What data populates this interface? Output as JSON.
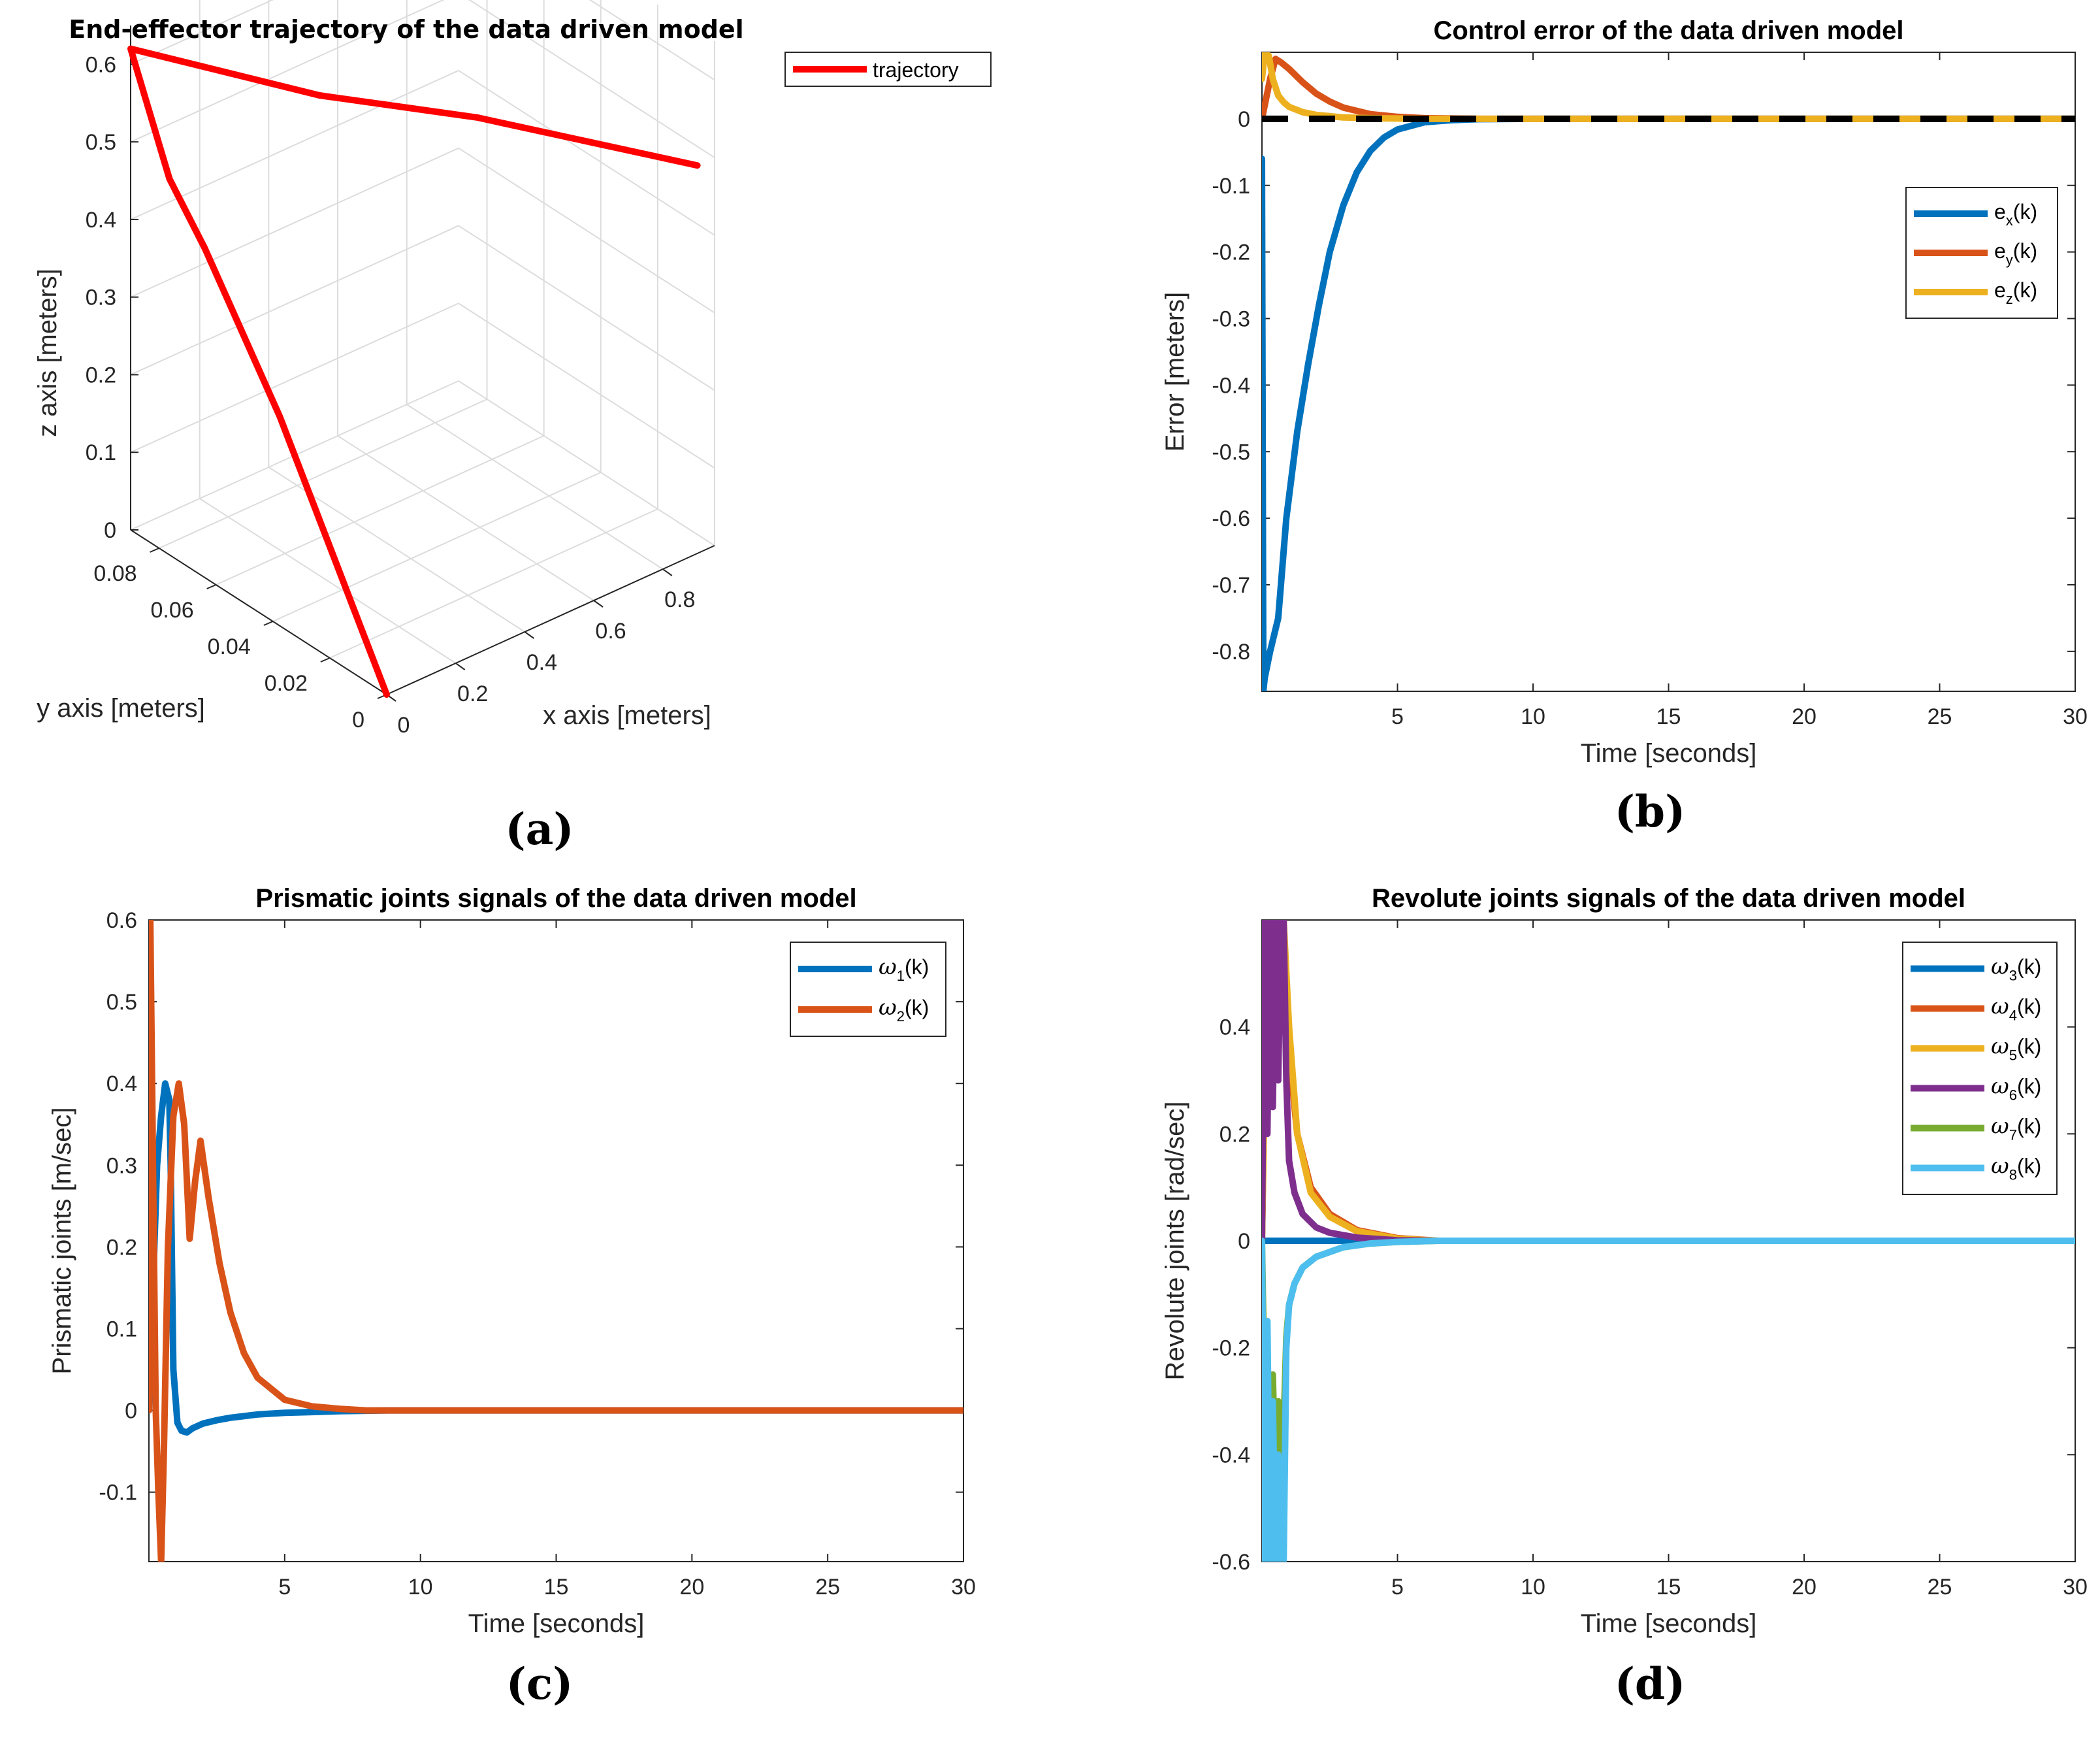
{
  "chart_data": [
    {
      "id": "a",
      "type": "line3d",
      "title": "End-effector  trajectory of the data driven model",
      "xlabel": "x axis [meters]",
      "ylabel": "y axis [meters]",
      "zlabel": "z axis [meters]",
      "xlim": [
        0,
        0.95
      ],
      "ylim": [
        0,
        0.09
      ],
      "zlim": [
        0,
        0.65
      ],
      "xticks": [
        "0",
        "0.2",
        "0.4",
        "0.6",
        "0.8"
      ],
      "yticks": [
        "0",
        "0.02",
        "0.04",
        "0.06",
        "0.08"
      ],
      "zticks": [
        "0",
        "0.1",
        "0.2",
        "0.3",
        "0.4",
        "0.5",
        "0.6"
      ],
      "legend": [
        "trajectory"
      ],
      "caption": "(a)",
      "series": [
        {
          "name": "trajectory",
          "color": "#ff0000",
          "points": [
            {
              "x": 0.0,
              "y": 0.0,
              "z": 0.0
            },
            {
              "x": 0.02,
              "y": 0.04,
              "z": 0.26
            },
            {
              "x": 0.05,
              "y": 0.07,
              "z": 0.4
            },
            {
              "x": 0.03,
              "y": 0.08,
              "z": 0.47
            },
            {
              "x": 0.0,
              "y": 0.09,
              "z": 0.62
            },
            {
              "x": 0.3,
              "y": 0.06,
              "z": 0.57
            },
            {
              "x": 0.55,
              "y": 0.035,
              "z": 0.55
            },
            {
              "x": 0.9,
              "y": 0.0,
              "z": 0.5
            }
          ]
        }
      ]
    },
    {
      "id": "b",
      "type": "line",
      "title": "Control error of the data driven model",
      "xlabel": "Time [seconds]",
      "ylabel": "Error [meters]",
      "xlim": [
        0,
        30
      ],
      "ylim": [
        -0.86,
        0.1
      ],
      "xticks": [
        5,
        10,
        15,
        20,
        25,
        30
      ],
      "yticks": [
        0,
        -0.1,
        -0.2,
        -0.3,
        -0.4,
        -0.5,
        -0.6,
        -0.7,
        -0.8
      ],
      "caption": "(b)",
      "reference_line": {
        "y": 0,
        "color": "#000000",
        "style": "dashed"
      },
      "series": [
        {
          "name": "e_x(k)",
          "label": "e",
          "sub": "x",
          "suffix": "(k)",
          "color": "#0072bd",
          "x": [
            0,
            0.05,
            0.1,
            0.3,
            0.6,
            0.9,
            1.3,
            1.7,
            2.1,
            2.5,
            3,
            3.5,
            4,
            4.5,
            5,
            6,
            7,
            8,
            10,
            30
          ],
          "y": [
            -0.06,
            -0.86,
            -0.84,
            -0.8,
            -0.75,
            -0.6,
            -0.47,
            -0.37,
            -0.28,
            -0.2,
            -0.13,
            -0.08,
            -0.048,
            -0.028,
            -0.016,
            -0.005,
            -0.002,
            -0.0005,
            0,
            0
          ]
        },
        {
          "name": "e_y(k)",
          "label": "e",
          "sub": "y",
          "suffix": "(k)",
          "color": "#d95319",
          "x": [
            0,
            0.1,
            0.3,
            0.5,
            0.7,
            1,
            1.5,
            2,
            2.5,
            3,
            4,
            5,
            6,
            8,
            30
          ],
          "y": [
            0,
            0.02,
            0.06,
            0.09,
            0.085,
            0.075,
            0.055,
            0.038,
            0.026,
            0.017,
            0.007,
            0.003,
            0.001,
            0,
            0
          ]
        },
        {
          "name": "e_z(k)",
          "label": "e",
          "sub": "z",
          "suffix": "(k)",
          "color": "#edb120",
          "x": [
            0,
            0.1,
            0.25,
            0.4,
            0.6,
            0.8,
            1,
            1.5,
            2,
            3,
            4,
            6,
            30
          ],
          "y": [
            0.06,
            0.1,
            0.095,
            0.06,
            0.035,
            0.025,
            0.018,
            0.01,
            0.006,
            0.002,
            0.001,
            0,
            0
          ]
        }
      ]
    },
    {
      "id": "c",
      "type": "line",
      "title": "Prismatic joints signals of the data driven model",
      "xlabel": "Time [seconds]",
      "ylabel": "Prismatic joints [m/sec]",
      "xlim": [
        0,
        30
      ],
      "ylim": [
        -0.185,
        0.6
      ],
      "xticks": [
        5,
        10,
        15,
        20,
        25,
        30
      ],
      "yticks": [
        0.6,
        0.5,
        0.4,
        0.3,
        0.2,
        0.1,
        0,
        -0.1
      ],
      "caption": "(c)",
      "series": [
        {
          "name": "ω_1(k)",
          "label": "ω",
          "sub": "1",
          "suffix": "(k)",
          "color": "#0072bd",
          "x": [
            0,
            0.15,
            0.3,
            0.45,
            0.6,
            0.75,
            0.8,
            0.9,
            1.05,
            1.2,
            1.4,
            1.6,
            2,
            2.5,
            3,
            4,
            5,
            6,
            7,
            8.8,
            30
          ],
          "y": [
            0,
            0.15,
            0.3,
            0.36,
            0.4,
            0.38,
            0.3,
            0.05,
            -0.015,
            -0.025,
            -0.027,
            -0.022,
            -0.016,
            -0.012,
            -0.009,
            -0.005,
            -0.003,
            -0.002,
            -0.001,
            0,
            0
          ]
        },
        {
          "name": "ω_2(k)",
          "label": "ω",
          "sub": "2",
          "suffix": "(k)",
          "color": "#d95319",
          "x": [
            0,
            0.05,
            0.15,
            0.25,
            0.35,
            0.45,
            0.55,
            0.7,
            0.9,
            1.1,
            1.3,
            1.5,
            1.7,
            1.9,
            2.2,
            2.6,
            3,
            3.5,
            4,
            5,
            6,
            7,
            8,
            30
          ],
          "y": [
            0,
            0.6,
            0.3,
            0.0,
            -0.1,
            -0.185,
            -0.05,
            0.2,
            0.36,
            0.4,
            0.35,
            0.21,
            0.28,
            0.33,
            0.26,
            0.18,
            0.12,
            0.07,
            0.04,
            0.013,
            0.005,
            0.002,
            0,
            0
          ]
        }
      ]
    },
    {
      "id": "d",
      "type": "line",
      "title": "Revolute joints signals of the data driven model",
      "xlabel": "Time [seconds]",
      "ylabel": "Revolute joints [rad/sec]",
      "xlim": [
        0,
        30
      ],
      "ylim": [
        -0.6,
        0.6
      ],
      "xticks": [
        5,
        10,
        15,
        20,
        25,
        30
      ],
      "yticks": [
        0.4,
        0.2,
        0,
        -0.2,
        -0.4,
        -0.6
      ],
      "caption": "(d)",
      "series": [
        {
          "name": "ω_3(k)",
          "label": "ω",
          "sub": "3",
          "suffix": "(k)",
          "color": "#0072bd",
          "x": [
            0,
            30
          ],
          "y": [
            0,
            0
          ]
        },
        {
          "name": "ω_4(k)",
          "label": "ω",
          "sub": "4",
          "suffix": "(k)",
          "color": "#d95319",
          "x": [
            0,
            0.2,
            0.4,
            0.6,
            0.8,
            1,
            1.3,
            1.8,
            2.5,
            3.5,
            5,
            6.5,
            30
          ],
          "y": [
            0,
            0.6,
            0.3,
            0.6,
            0.6,
            0.35,
            0.2,
            0.1,
            0.05,
            0.02,
            0.005,
            0,
            0
          ]
        },
        {
          "name": "ω_5(k)",
          "label": "ω",
          "sub": "5",
          "suffix": "(k)",
          "color": "#edb120",
          "x": [
            0,
            0.2,
            0.4,
            0.6,
            0.8,
            1,
            1.3,
            1.8,
            2.5,
            3.5,
            5,
            6.5,
            30
          ],
          "y": [
            0,
            0.6,
            0.4,
            0.6,
            0.6,
            0.4,
            0.2,
            0.09,
            0.045,
            0.018,
            0.004,
            0,
            0
          ]
        },
        {
          "name": "ω_6(k)",
          "label": "ω",
          "sub": "6",
          "suffix": "(k)",
          "color": "#7e2f8e",
          "x": [
            0,
            0.1,
            0.2,
            0.3,
            0.4,
            0.5,
            0.6,
            0.7,
            0.8,
            0.9,
            1,
            1.2,
            1.5,
            2,
            2.5,
            3.5,
            5,
            6.5,
            30
          ],
          "y": [
            0,
            0.6,
            0.2,
            0.6,
            0.25,
            0.6,
            0.3,
            0.6,
            0.6,
            0.3,
            0.15,
            0.09,
            0.05,
            0.025,
            0.015,
            0.006,
            0.001,
            0,
            0
          ]
        },
        {
          "name": "ω_7(k)",
          "label": "ω",
          "sub": "7",
          "suffix": "(k)",
          "color": "#77ac30",
          "x": [
            0,
            0.2,
            0.4,
            0.5,
            0.6,
            0.7,
            0.8,
            0.9,
            1,
            1.2,
            1.5,
            2,
            3,
            4,
            5,
            6.5,
            30
          ],
          "y": [
            0,
            -0.6,
            -0.25,
            -0.45,
            -0.3,
            -0.5,
            -0.35,
            -0.18,
            -0.12,
            -0.08,
            -0.05,
            -0.03,
            -0.012,
            -0.005,
            -0.002,
            0,
            0
          ]
        },
        {
          "name": "ω_8(k)",
          "label": "ω",
          "sub": "8",
          "suffix": "(k)",
          "color": "#4dbeee",
          "x": [
            0,
            0.1,
            0.2,
            0.3,
            0.4,
            0.5,
            0.6,
            0.7,
            0.8,
            0.9,
            1,
            1.2,
            1.5,
            2,
            3,
            4,
            5,
            6.5,
            30
          ],
          "y": [
            0,
            -0.6,
            -0.15,
            -0.6,
            -0.3,
            -0.6,
            -0.4,
            -0.6,
            -0.6,
            -0.2,
            -0.12,
            -0.08,
            -0.05,
            -0.03,
            -0.012,
            -0.005,
            -0.002,
            0,
            0
          ]
        }
      ]
    }
  ]
}
